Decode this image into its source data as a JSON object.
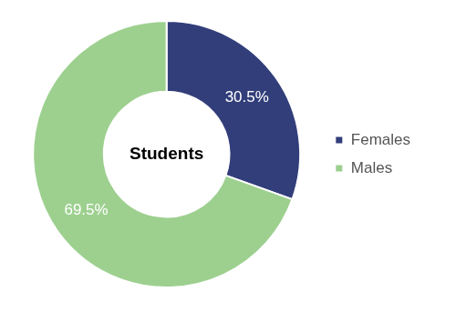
{
  "chart_data": {
    "type": "doughnut",
    "title": "Students",
    "categories": [
      "Females",
      "Males"
    ],
    "values": [
      30.5,
      69.5
    ],
    "value_labels": [
      "30.5%",
      "69.5%"
    ],
    "colors": [
      "#323e7a",
      "#9dd08f"
    ],
    "data_labels": true,
    "legend": "right"
  }
}
